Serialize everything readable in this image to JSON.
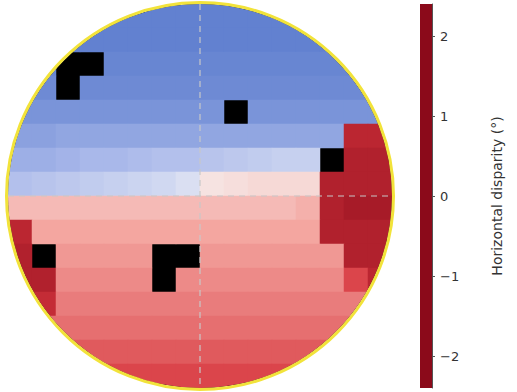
{
  "chart_data": {
    "type": "heatmap",
    "cells": [
      [
        1.4,
        1.4,
        1.4,
        1.4,
        1.4,
        1.4,
        1.4,
        1.4,
        1.4,
        1.4,
        1.4,
        1.4,
        1.4,
        1.4,
        1.4,
        1.4
      ],
      [
        1.4,
        1.4,
        1.4,
        1.4,
        1.4,
        1.4,
        1.4,
        1.4,
        1.4,
        1.4,
        1.4,
        1.4,
        1.4,
        1.4,
        1.4,
        1.4
      ],
      [
        1.35,
        1.35,
        null,
        null,
        1.35,
        1.35,
        1.35,
        1.35,
        1.35,
        1.35,
        1.35,
        1.35,
        1.35,
        1.35,
        1.35,
        1.35
      ],
      [
        1.3,
        1.3,
        null,
        1.3,
        1.3,
        1.3,
        1.3,
        1.3,
        1.3,
        1.3,
        1.3,
        1.3,
        1.3,
        1.3,
        1.3,
        1.3
      ],
      [
        1.2,
        1.2,
        1.2,
        1.2,
        1.2,
        1.2,
        1.2,
        1.2,
        1.2,
        null,
        1.2,
        1.2,
        1.2,
        1.2,
        1.2,
        1.2
      ],
      [
        1.05,
        1.05,
        1.0,
        1.0,
        1.0,
        1.0,
        1.0,
        1.0,
        1.0,
        1.0,
        1.0,
        1.0,
        1.0,
        1.0,
        -1.9,
        -1.9
      ],
      [
        0.9,
        0.9,
        0.85,
        0.8,
        0.8,
        0.75,
        0.7,
        0.7,
        0.65,
        0.6,
        0.55,
        0.5,
        0.5,
        null,
        -2.0,
        -2.0
      ],
      [
        0.7,
        0.65,
        0.6,
        0.55,
        0.5,
        0.45,
        0.4,
        0.3,
        -0.2,
        -0.25,
        -0.3,
        -0.3,
        -0.3,
        -2.0,
        -2.0,
        -2.0
      ],
      [
        -0.6,
        -0.6,
        -0.6,
        -0.6,
        -0.6,
        -0.6,
        -0.6,
        -0.6,
        -0.6,
        -0.6,
        -0.6,
        -0.6,
        -0.7,
        -2.0,
        -2.1,
        -2.1
      ],
      [
        -1.9,
        -0.8,
        -0.8,
        -0.8,
        -0.8,
        -0.8,
        -0.8,
        -0.8,
        -0.8,
        -0.8,
        -0.8,
        -0.8,
        -0.8,
        -2.0,
        -2.0,
        -2.0
      ],
      [
        -2.0,
        null,
        -0.9,
        -0.9,
        -0.9,
        -0.9,
        null,
        null,
        -0.9,
        -0.9,
        -0.9,
        -0.9,
        -0.9,
        -0.9,
        -2.0,
        -2.0
      ],
      [
        -2.0,
        -2.0,
        -1.0,
        -1.0,
        -1.0,
        -1.0,
        null,
        -1.0,
        -1.0,
        -1.0,
        -1.0,
        -1.0,
        -1.0,
        -1.0,
        -1.5,
        -1.9
      ],
      [
        -2.0,
        -1.8,
        -1.1,
        -1.1,
        -1.1,
        -1.1,
        -1.1,
        -1.1,
        -1.1,
        -1.1,
        -1.1,
        -1.1,
        -1.1,
        -1.1,
        -1.1,
        -1.1
      ],
      [
        -1.2,
        -1.2,
        -1.2,
        -1.2,
        -1.2,
        -1.2,
        -1.2,
        -1.2,
        -1.2,
        -1.2,
        -1.2,
        -1.2,
        -1.2,
        -1.2,
        -1.2,
        -1.2
      ],
      [
        -1.35,
        -1.35,
        -1.35,
        -1.35,
        -1.35,
        -1.35,
        -1.35,
        -1.35,
        -1.35,
        -1.35,
        -1.35,
        -1.35,
        -1.35,
        -1.35,
        -1.35,
        -1.35
      ],
      [
        -1.5,
        -1.5,
        -1.5,
        -1.5,
        -1.5,
        -1.5,
        -1.5,
        -1.5,
        -1.5,
        -1.5,
        -1.5,
        -1.5,
        -1.5,
        -1.5,
        -1.5,
        -1.5
      ]
    ],
    "color_range": [
      -2.4,
      2.4
    ],
    "color_ticks": [
      {
        "value": -2,
        "label": "−2"
      },
      {
        "value": -1,
        "label": "−1"
      },
      0,
      1,
      2
    ],
    "colorbar_label": "Horizontal disparity (°)",
    "tick_labels": false
  }
}
